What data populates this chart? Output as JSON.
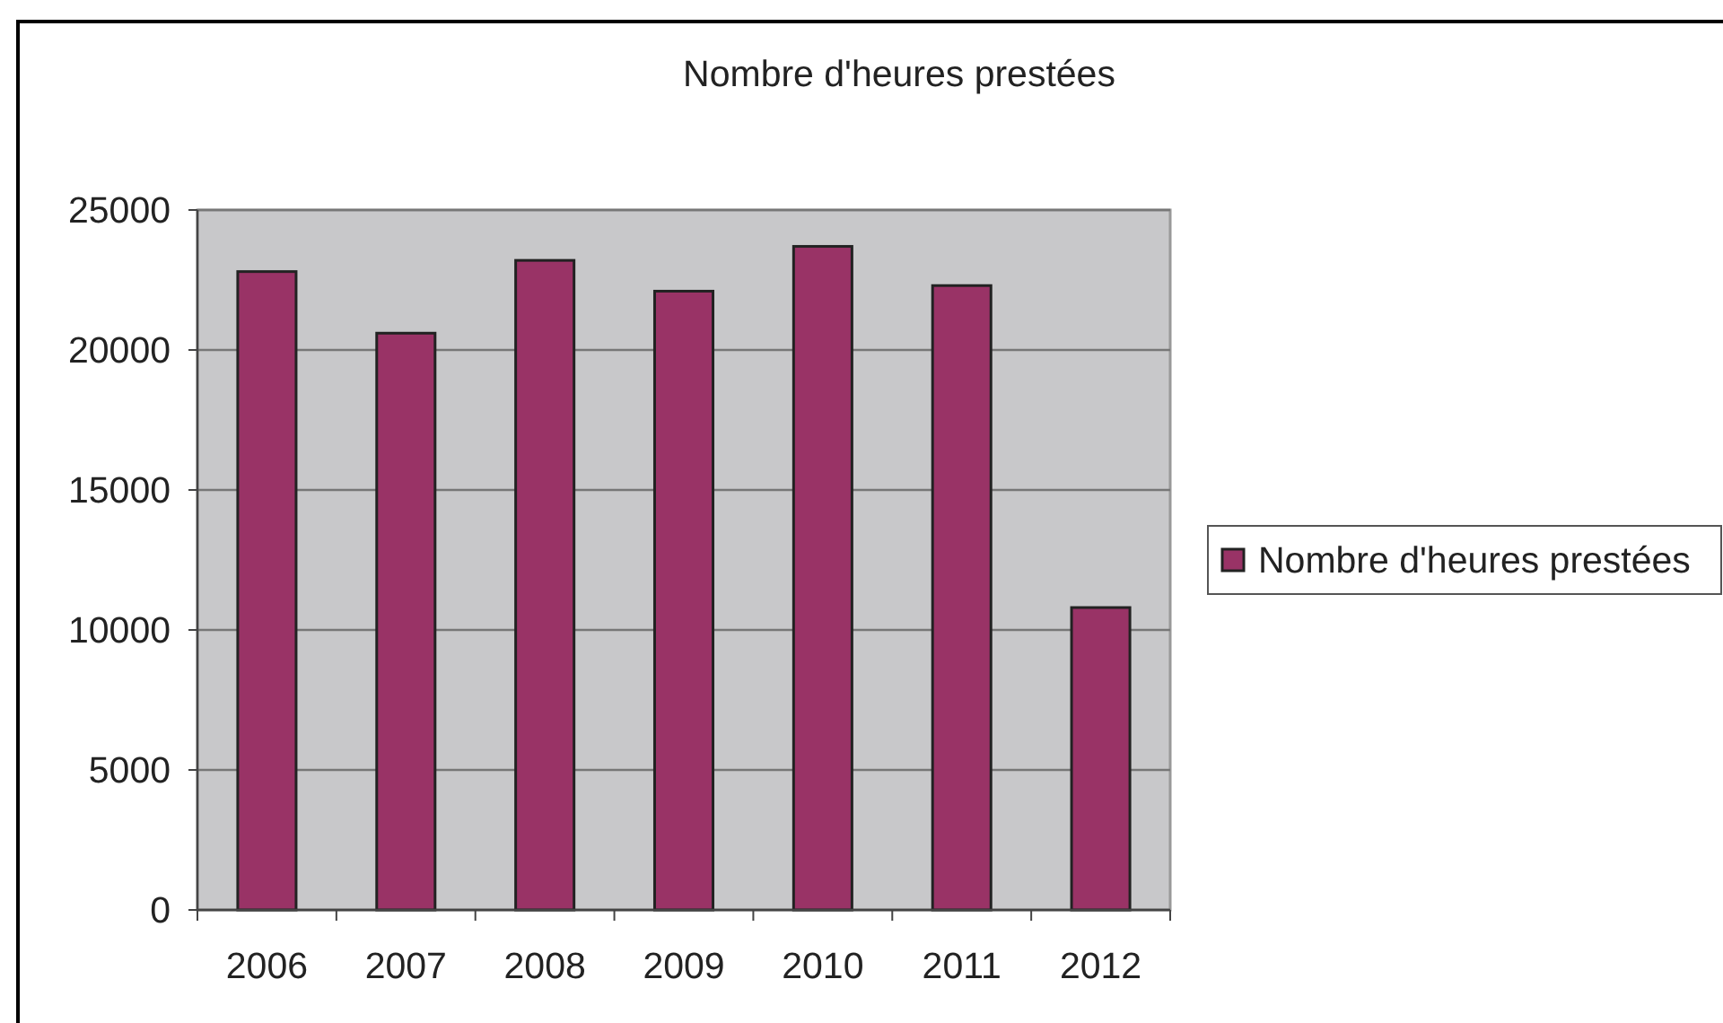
{
  "chart_data": {
    "type": "bar",
    "title": "Nombre d'heures prestées",
    "categories": [
      "2006",
      "2007",
      "2008",
      "2009",
      "2010",
      "2011",
      "2012"
    ],
    "series": [
      {
        "name": "Nombre d'heures prestées",
        "color": "#993366",
        "values": [
          22800,
          20600,
          23200,
          22100,
          23700,
          22300,
          10800
        ]
      }
    ],
    "ylim": [
      0,
      25000
    ],
    "yticks": [
      0,
      5000,
      10000,
      15000,
      20000,
      25000
    ],
    "grid": "y",
    "legend": "right"
  }
}
